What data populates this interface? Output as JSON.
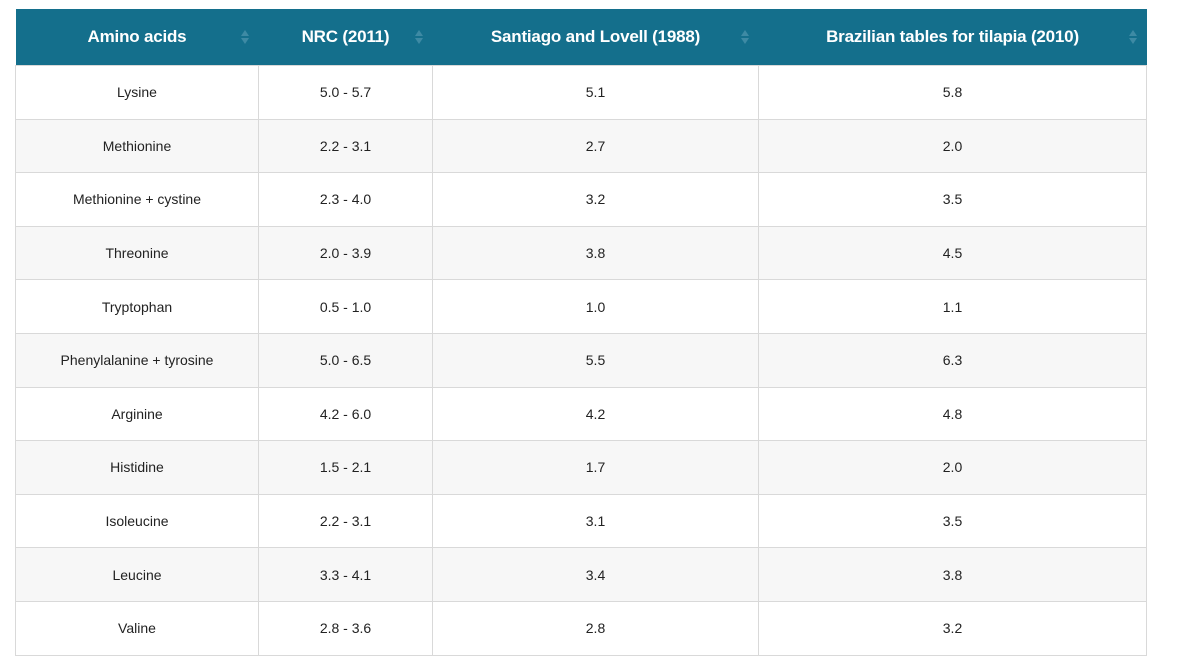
{
  "table": {
    "columns": [
      {
        "label": "Amino acids"
      },
      {
        "label": "NRC (2011)"
      },
      {
        "label": "Santiago and Lovell (1988)"
      },
      {
        "label": "Brazilian tables for tilapia (2010)"
      }
    ],
    "sort_icon": "sort-updown-icon",
    "rows": [
      [
        "Lysine",
        "5.0 - 5.7",
        "5.1",
        "5.8"
      ],
      [
        "Methionine",
        "2.2 - 3.1",
        "2.7",
        "2.0"
      ],
      [
        "Methionine + cystine",
        "2.3 - 4.0",
        "3.2",
        "3.5"
      ],
      [
        "Threonine",
        "2.0 - 3.9",
        "3.8",
        "4.5"
      ],
      [
        "Tryptophan",
        "0.5 - 1.0",
        "1.0",
        "1.1"
      ],
      [
        "Phenylalanine + tyrosine",
        "5.0 - 6.5",
        "5.5",
        "6.3"
      ],
      [
        "Arginine",
        "4.2 - 6.0",
        "4.2",
        "4.8"
      ],
      [
        "Histidine",
        "1.5 - 2.1",
        "1.7",
        "2.0"
      ],
      [
        "Isoleucine",
        "2.2 - 3.1",
        "3.1",
        "3.5"
      ],
      [
        "Leucine",
        "3.3 - 4.1",
        "3.4",
        "3.8"
      ],
      [
        "Valine",
        "2.8 - 3.6",
        "2.8",
        "3.2"
      ]
    ]
  },
  "colors": {
    "header_bg": "#146f8c",
    "header_text": "#ffffff",
    "stripe_bg": "#f7f7f7",
    "border": "#d9d9d9"
  }
}
